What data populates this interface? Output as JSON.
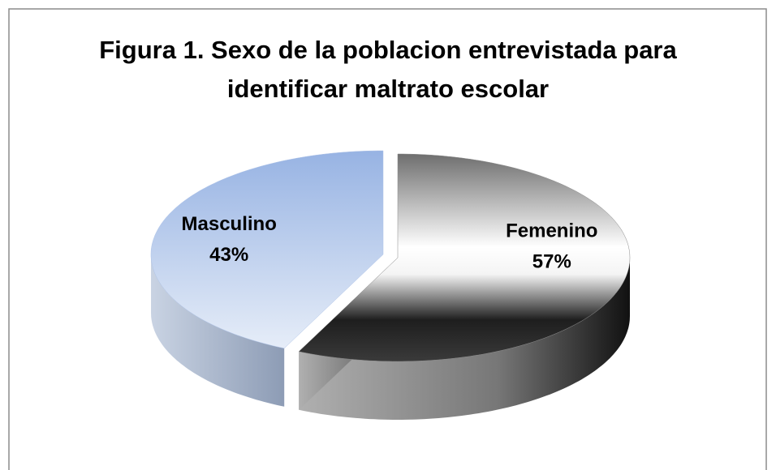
{
  "chart_data": {
    "type": "pie",
    "title": "Figura 1. Sexo de la poblacion entrevistada para identificar maltrato escolar",
    "categories": [
      "Femenino",
      "Masculino"
    ],
    "values": [
      57,
      43
    ],
    "value_labels": [
      "57%",
      "43%"
    ],
    "colors": [
      "#8a8a8a",
      "#aec3e8"
    ]
  }
}
